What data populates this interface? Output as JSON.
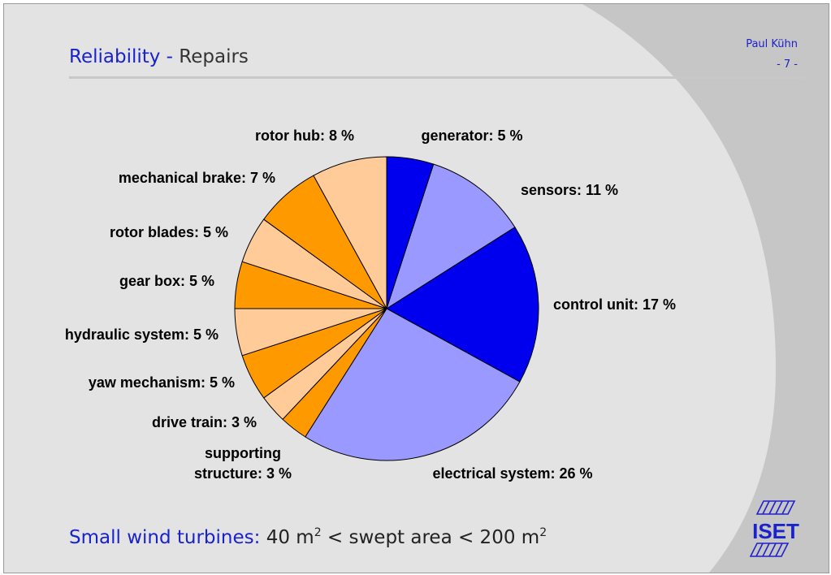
{
  "header": {
    "title_main": "Reliability -",
    "title_sub": "Repairs",
    "author": "Paul Kühn",
    "page": "- 7 -"
  },
  "footer": {
    "main": "Small wind turbines:",
    "sub_part1": "40 m",
    "sup1": "2",
    "sub_part2": " < swept area < 200 m",
    "sup2": "2"
  },
  "logo": {
    "text": "ISET"
  },
  "colors": {
    "dark_blue": "#0000ee",
    "light_blue": "#9999ff",
    "orange": "#ff9900",
    "peach": "#ffcc99",
    "title_blue": "#1a22cc"
  },
  "chart_data": {
    "type": "pie",
    "start": "top",
    "direction": "clockwise",
    "slices": [
      {
        "name": "generator",
        "label": "generator: 5 %",
        "value": 5,
        "color": "#0000ee"
      },
      {
        "name": "sensors",
        "label": "sensors: 11 %",
        "value": 11,
        "color": "#9999ff"
      },
      {
        "name": "control unit",
        "label": "control unit: 17 %",
        "value": 17,
        "color": "#0000ee"
      },
      {
        "name": "electrical system",
        "label": "electrical system: 26 %",
        "value": 26,
        "color": "#9999ff"
      },
      {
        "name": "supporting structure",
        "label": "supporting structure: 3 %",
        "label_lines": [
          "supporting",
          "structure: 3 %"
        ],
        "value": 3,
        "color": "#ff9900"
      },
      {
        "name": "drive train",
        "label": "drive train: 3 %",
        "value": 3,
        "color": "#ffcc99"
      },
      {
        "name": "yaw mechanism",
        "label": "yaw mechanism: 5 %",
        "value": 5,
        "color": "#ff9900"
      },
      {
        "name": "hydraulic system",
        "label": "hydraulic system: 5 %",
        "value": 5,
        "color": "#ffcc99"
      },
      {
        "name": "gear box",
        "label": "gear box: 5 %",
        "value": 5,
        "color": "#ff9900"
      },
      {
        "name": "rotor blades",
        "label": "rotor blades: 5 %",
        "value": 5,
        "color": "#ffcc99"
      },
      {
        "name": "mechanical brake",
        "label": "mechanical brake: 7 %",
        "value": 7,
        "color": "#ff9900"
      },
      {
        "name": "rotor hub",
        "label": "rotor hub: 8 %",
        "value": 8,
        "color": "#ffcc99"
      }
    ]
  }
}
